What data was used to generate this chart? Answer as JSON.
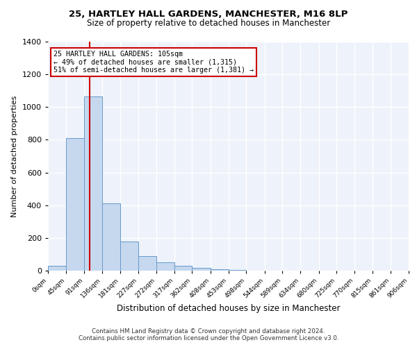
{
  "title1": "25, HARTLEY HALL GARDENS, MANCHESTER, M16 8LP",
  "title2": "Size of property relative to detached houses in Manchester",
  "xlabel": "Distribution of detached houses by size in Manchester",
  "ylabel": "Number of detached properties",
  "bar_edges": [
    0,
    45,
    91,
    136,
    181,
    227,
    272,
    317,
    362,
    408,
    453,
    498,
    544,
    589,
    634,
    680,
    725,
    770,
    815,
    861,
    906
  ],
  "bar_heights": [
    30,
    810,
    1065,
    410,
    180,
    90,
    50,
    30,
    15,
    8,
    3,
    1,
    0,
    0,
    0,
    0,
    0,
    0,
    0,
    0
  ],
  "bar_color": "#c5d8ee",
  "bar_edge_color": "#6699cc",
  "vline_x": 105,
  "vline_color": "#cc0000",
  "annotation_text": "25 HARTLEY HALL GARDENS: 105sqm\n← 49% of detached houses are smaller (1,315)\n51% of semi-detached houses are larger (1,381) →",
  "annotation_box_color": "#ffffff",
  "annotation_box_edge": "#cc0000",
  "ylim": [
    0,
    1400
  ],
  "yticks": [
    0,
    200,
    400,
    600,
    800,
    1000,
    1200,
    1400
  ],
  "background_color": "#eef2fa",
  "grid_color": "#ffffff",
  "footer": "Contains HM Land Registry data © Crown copyright and database right 2024.\nContains public sector information licensed under the Open Government Licence v3.0.",
  "tick_labels": [
    "0sqm",
    "45sqm",
    "91sqm",
    "136sqm",
    "181sqm",
    "227sqm",
    "272sqm",
    "317sqm",
    "362sqm",
    "408sqm",
    "453sqm",
    "498sqm",
    "544sqm",
    "589sqm",
    "634sqm",
    "680sqm",
    "725sqm",
    "770sqm",
    "815sqm",
    "861sqm",
    "906sqm"
  ],
  "title1_fontsize": 9.5,
  "title2_fontsize": 8.5,
  "ylabel_fontsize": 8,
  "xlabel_fontsize": 8.5
}
